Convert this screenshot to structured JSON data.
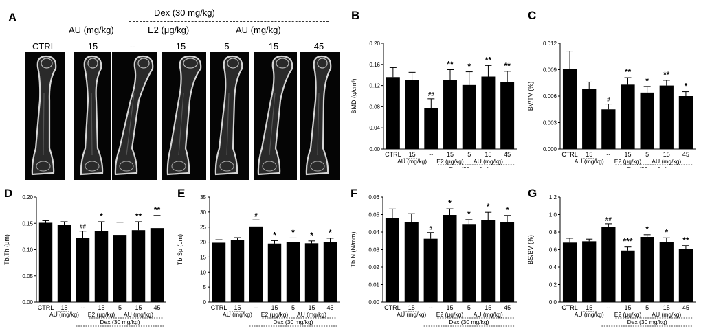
{
  "panel_letters": {
    "A": "A",
    "B": "B",
    "C": "C",
    "D": "D",
    "E": "E",
    "F": "F",
    "G": "G"
  },
  "panel_a": {
    "dex_header": "Dex (30 mg/kg)",
    "au_header_left": "AU (mg/kg)",
    "e2_header": "E2 (μg/kg)",
    "au_header_right": "AU (mg/kg)",
    "group_labels": [
      "CTRL",
      "15",
      "--",
      "15",
      "5",
      "15",
      "45"
    ]
  },
  "chart_data": [
    {
      "type": "bar",
      "panel": "B",
      "categories": [
        "CTRL",
        "15",
        "--",
        "15",
        "5",
        "15",
        "45"
      ],
      "values": [
        0.136,
        0.13,
        0.077,
        0.13,
        0.121,
        0.137,
        0.127
      ],
      "errors": [
        0.018,
        0.015,
        0.018,
        0.02,
        0.025,
        0.021,
        0.02
      ],
      "significance": [
        "",
        "",
        "##",
        "**",
        "*",
        "**",
        "**"
      ],
      "ylabel": "BMD (g/cm³)",
      "ylim": [
        0,
        0.2
      ],
      "yticks": [
        "0.00",
        "0.04",
        "0.08",
        "0.12",
        "0.16",
        "0.20"
      ],
      "group_au": "AU (mg/kg)",
      "group_e2": "E2 (μg/kg)",
      "group_au2": "AU (mg/kg)",
      "group_dex": "Dex  (30 mg/kg)"
    },
    {
      "type": "bar",
      "panel": "C",
      "categories": [
        "CTRL",
        "15",
        "--",
        "15",
        "5",
        "15",
        "45"
      ],
      "values": [
        0.0091,
        0.0068,
        0.0045,
        0.0073,
        0.0064,
        0.0072,
        0.006
      ],
      "errors": [
        0.002,
        0.0008,
        0.0006,
        0.0008,
        0.0007,
        0.0006,
        0.0005
      ],
      "significance": [
        "",
        "",
        "#",
        "**",
        "*",
        "**",
        "*"
      ],
      "ylabel": "BV/TV (%)",
      "ylim": [
        0,
        0.012
      ],
      "yticks": [
        "0.000",
        "0.003",
        "0.006",
        "0.009",
        "0.012"
      ],
      "group_au": "AU (mg/kg)",
      "group_e2": "E2 (μg/kg)",
      "group_au2": "AU (mg/kg)",
      "group_dex": "Dex  (30 mg/kg)"
    },
    {
      "type": "bar",
      "panel": "D",
      "categories": [
        "CTRL",
        "15",
        "--",
        "15",
        "5",
        "15",
        "45"
      ],
      "values": [
        0.151,
        0.147,
        0.122,
        0.135,
        0.128,
        0.137,
        0.141
      ],
      "errors": [
        0.004,
        0.006,
        0.013,
        0.018,
        0.024,
        0.016,
        0.024
      ],
      "significance": [
        "",
        "",
        "##",
        "*",
        "",
        "**",
        "**"
      ],
      "ylabel": "Tb.Th (μm)",
      "ylim": [
        0,
        0.2
      ],
      "yticks": [
        "0.00",
        "0.05",
        "0.10",
        "0.15",
        "0.20"
      ],
      "group_au": "AU (mg/kg)",
      "group_e2": "E2 (μg/kg)",
      "group_au2": "AU (mg/kg)",
      "group_dex": "Dex  (30 mg/kg)"
    },
    {
      "type": "bar",
      "panel": "E",
      "categories": [
        "CTRL",
        "15",
        "--",
        "15",
        "5",
        "15",
        "45"
      ],
      "values": [
        19.8,
        20.7,
        25.2,
        19.5,
        20.1,
        19.6,
        20.1
      ],
      "errors": [
        1.0,
        0.8,
        2.2,
        1.0,
        1.3,
        0.8,
        1.2
      ],
      "significance": [
        "",
        "",
        "#",
        "*",
        "*",
        "*",
        "*"
      ],
      "ylabel": "Tb.Sp (μm)",
      "ylim": [
        0,
        35
      ],
      "yticks": [
        "0",
        "5",
        "10",
        "15",
        "20",
        "25",
        "30",
        "35"
      ],
      "group_au": "AU (mg/kg)",
      "group_e2": "E2 (μg/kg)",
      "group_au2": "AU (mg/kg)",
      "group_dex": "Dex  (30 mg/kg)"
    },
    {
      "type": "bar",
      "panel": "F",
      "categories": [
        "CTRL",
        "15",
        "--",
        "15",
        "5",
        "15",
        "45"
      ],
      "values": [
        0.048,
        0.0455,
        0.0362,
        0.0498,
        0.0446,
        0.0468,
        0.0455
      ],
      "errors": [
        0.0052,
        0.005,
        0.0035,
        0.0035,
        0.0025,
        0.0045,
        0.004
      ],
      "significance": [
        "",
        "",
        "#",
        "*",
        "*",
        "*",
        "*"
      ],
      "ylabel": "Tb.N (N/mm)",
      "ylim": [
        0,
        0.06
      ],
      "yticks": [
        "0.00",
        "0.01",
        "0.02",
        "0.03",
        "0.04",
        "0.05",
        "0.06"
      ],
      "group_au": "AU (mg/kg)",
      "group_e2": "E2 (μg/kg)",
      "group_au2": "AU (mg/kg)",
      "group_dex": "Dex  (30 mg/kg)"
    },
    {
      "type": "bar",
      "panel": "G",
      "categories": [
        "CTRL",
        "15",
        "--",
        "15",
        "5",
        "15",
        "45"
      ],
      "values": [
        0.68,
        0.695,
        0.86,
        0.59,
        0.745,
        0.69,
        0.605
      ],
      "errors": [
        0.05,
        0.025,
        0.035,
        0.04,
        0.025,
        0.045,
        0.04
      ],
      "significance": [
        "",
        "",
        "##",
        "***",
        "*",
        "*",
        "**"
      ],
      "ylabel": "BS/BV (%)",
      "ylim": [
        0,
        1.2
      ],
      "yticks": [
        "0.0",
        "0.2",
        "0.4",
        "0.6",
        "0.8",
        "1.0",
        "1.2"
      ],
      "group_au": "AU (mg/kg)",
      "group_e2": "E2 (μg/kg)",
      "group_au2": "AU (mg/kg)",
      "group_dex": "Dex  (30 mg/kg)"
    }
  ]
}
